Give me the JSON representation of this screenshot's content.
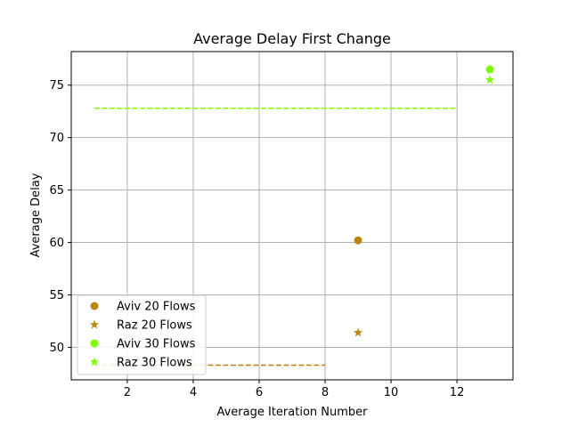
{
  "chart_data": {
    "type": "scatter",
    "title": "Average Delay First Change",
    "xlabel": "Average Iteration Number",
    "ylabel": "Average Delay",
    "xlim": [
      0.3,
      13.7
    ],
    "ylim": [
      46.9,
      78.2
    ],
    "xticks": [
      2,
      4,
      6,
      8,
      10,
      12
    ],
    "yticks": [
      50,
      55,
      60,
      65,
      70,
      75
    ],
    "grid": true,
    "legend_position": "lower-left",
    "series": [
      {
        "name": "Aviv 20 Flows",
        "marker": "circle",
        "color": "#b8860b",
        "points": [
          {
            "x": 9,
            "y": 60.2
          }
        ]
      },
      {
        "name": "Raz 20 Flows",
        "marker": "star",
        "color": "#b8860b",
        "points": [
          {
            "x": 9,
            "y": 51.4
          }
        ]
      },
      {
        "name": "Aviv 30 Flows",
        "marker": "circle",
        "color": "#7cfc00",
        "points": [
          {
            "x": 13,
            "y": 76.5
          }
        ]
      },
      {
        "name": "Raz 30 Flows",
        "marker": "star",
        "color": "#7cfc00",
        "points": [
          {
            "x": 13,
            "y": 75.5
          }
        ]
      }
    ],
    "reference_lines": [
      {
        "color": "#b8860b",
        "style": "dashed",
        "x": [
          1,
          8
        ],
        "y": 48.3
      },
      {
        "color": "#7cfc00",
        "style": "dashed",
        "x": [
          1,
          12
        ],
        "y": 72.8
      }
    ]
  }
}
